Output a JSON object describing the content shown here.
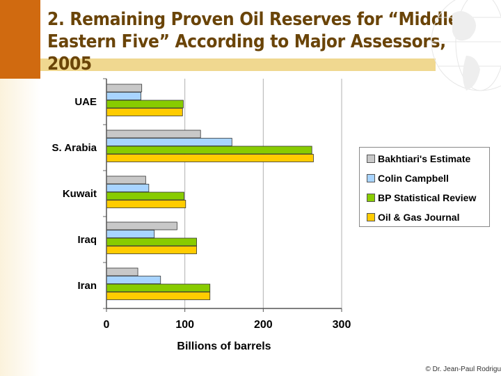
{
  "title": "2. Remaining Proven Oil Reserves for “Middle Eastern Five” According to Major Assessors, 2005",
  "credit": "© Dr. Jean-Paul Rodrigu",
  "colors": {
    "accent": "#d06a10",
    "title": "#6a4408"
  },
  "chart_data": {
    "type": "bar",
    "orientation": "horizontal",
    "categories": [
      "UAE",
      "S. Arabia",
      "Kuwait",
      "Iraq",
      "Iran"
    ],
    "series": [
      {
        "name": "Bakhtiari's Estimate",
        "color": "#c8c8c8",
        "values": [
          45,
          120,
          50,
          90,
          40
        ]
      },
      {
        "name": "Colin Campbell",
        "color": "#a8d4ff",
        "values": [
          44,
          160,
          54,
          61,
          69
        ]
      },
      {
        "name": "BP Statistical Review",
        "color": "#88cc00",
        "values": [
          98,
          262,
          99,
          115,
          132
        ]
      },
      {
        "name": "Oil & Gas Journal",
        "color": "#ffcc00",
        "values": [
          97,
          264,
          101,
          115,
          132
        ]
      }
    ],
    "xlabel": "Billions of barrels",
    "xticks": [
      0,
      100,
      200,
      300
    ],
    "xlim": [
      0,
      300
    ],
    "grid": true,
    "legend": "right"
  }
}
